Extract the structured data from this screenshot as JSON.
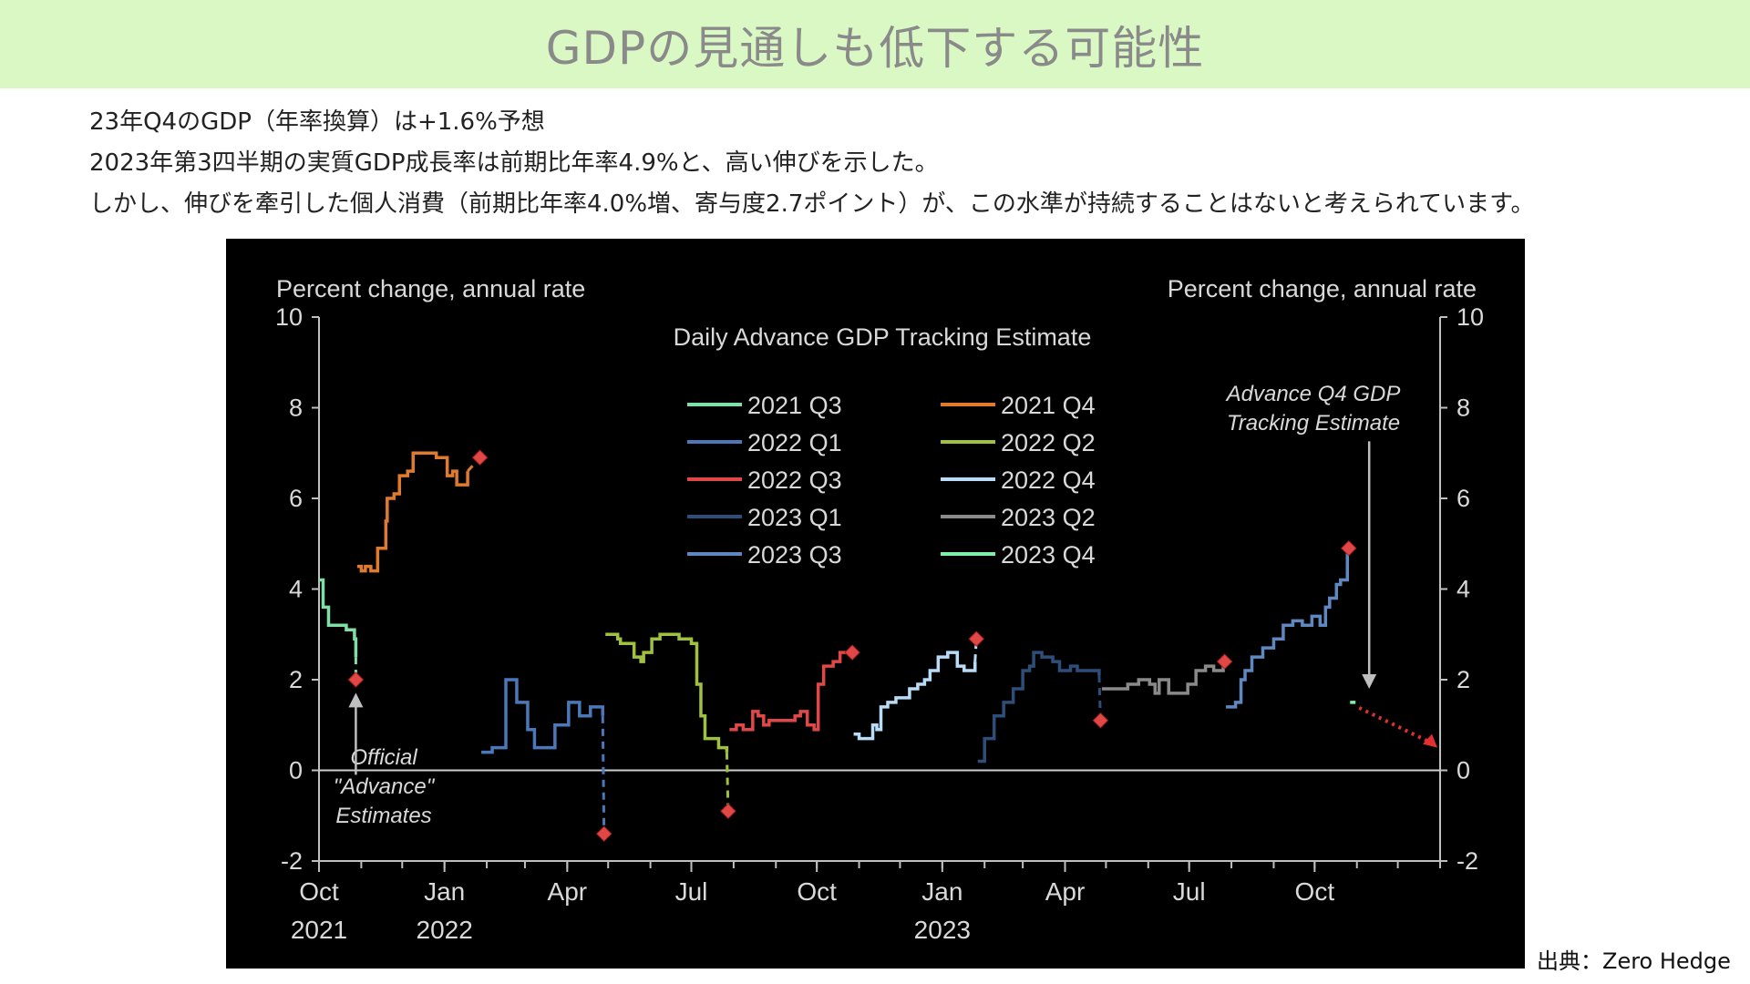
{
  "header": {
    "title": "GDPの見通しも低下する可能性"
  },
  "body": {
    "line1": "23年Q4のGDP（年率換算）は+1.6%予想",
    "line2": "2023年第3四半期の実質GDP成長率は前期比年率4.9%と、高い伸びを示した。",
    "line3": "しかし、伸びを牽引した個人消費（前期比年率4.0%増、寄与度2.7ポイント）が、この水準が持続することはないと考えられています。"
  },
  "source": "出典：Zero Hedge",
  "chart_data": {
    "type": "line",
    "title": "Daily Advance  GDP Tracking Estimate",
    "ylabel_left": "Percent change, annual rate",
    "ylabel_right": "Percent change, annual rate",
    "ylim": [
      -2,
      10
    ],
    "yticks": [
      -2,
      0,
      2,
      4,
      6,
      8,
      10
    ],
    "x_start": "2021-10-01",
    "x_end": "2024-01-01",
    "xticks": [
      {
        "date": "2021-10-01",
        "month": "Oct",
        "year": "2021"
      },
      {
        "date": "2022-01-01",
        "month": "Jan",
        "year": "2022"
      },
      {
        "date": "2022-04-01",
        "month": "Apr",
        "year": ""
      },
      {
        "date": "2022-07-01",
        "month": "Jul",
        "year": ""
      },
      {
        "date": "2022-10-01",
        "month": "Oct",
        "year": ""
      },
      {
        "date": "2023-01-01",
        "month": "Jan",
        "year": "2023"
      },
      {
        "date": "2023-04-01",
        "month": "Apr",
        "year": ""
      },
      {
        "date": "2023-07-01",
        "month": "Jul",
        "year": ""
      },
      {
        "date": "2023-10-01",
        "month": "Oct",
        "year": ""
      }
    ],
    "grid": false,
    "legend_position": "top-center",
    "series": [
      {
        "name": "2021 Q3",
        "color": "#7ee0a6",
        "points": [
          [
            "2021-10-01",
            4.2
          ],
          [
            "2021-10-04",
            3.6
          ],
          [
            "2021-10-07",
            3.6
          ],
          [
            "2021-10-08",
            3.2
          ],
          [
            "2021-10-20",
            3.2
          ],
          [
            "2021-10-21",
            3.1
          ],
          [
            "2021-10-26",
            3.1
          ],
          [
            "2021-10-27",
            2.9
          ],
          [
            "2021-10-28",
            2.5
          ]
        ],
        "advance": [
          "2021-10-28",
          2.0
        ]
      },
      {
        "name": "2021 Q4",
        "color": "#e07b2e",
        "points": [
          [
            "2021-10-29",
            4.5
          ],
          [
            "2021-11-01",
            4.4
          ],
          [
            "2021-11-04",
            4.5
          ],
          [
            "2021-11-08",
            4.4
          ],
          [
            "2021-11-12",
            4.4
          ],
          [
            "2021-11-13",
            4.9
          ],
          [
            "2021-11-17",
            4.9
          ],
          [
            "2021-11-19",
            5.5
          ],
          [
            "2021-11-20",
            6.0
          ],
          [
            "2021-11-25",
            6.1
          ],
          [
            "2021-11-29",
            6.5
          ],
          [
            "2021-12-05",
            6.6
          ],
          [
            "2021-12-09",
            7.0
          ],
          [
            "2021-12-22",
            7.0
          ],
          [
            "2021-12-26",
            6.9
          ],
          [
            "2022-01-01",
            6.9
          ],
          [
            "2022-01-03",
            6.5
          ],
          [
            "2022-01-07",
            6.6
          ],
          [
            "2022-01-10",
            6.3
          ],
          [
            "2022-01-14",
            6.3
          ],
          [
            "2022-01-18",
            6.6
          ]
        ],
        "advance": [
          "2022-01-27",
          6.9
        ]
      },
      {
        "name": "2022 Q1",
        "color": "#4a78b8",
        "points": [
          [
            "2022-01-28",
            0.4
          ],
          [
            "2022-02-05",
            0.5
          ],
          [
            "2022-02-13",
            0.5
          ],
          [
            "2022-02-15",
            2.0
          ],
          [
            "2022-02-20",
            2.0
          ],
          [
            "2022-02-23",
            1.5
          ],
          [
            "2022-02-28",
            1.5
          ],
          [
            "2022-03-03",
            0.9
          ],
          [
            "2022-03-08",
            0.5
          ],
          [
            "2022-03-21",
            0.5
          ],
          [
            "2022-03-23",
            1.0
          ],
          [
            "2022-03-30",
            1.0
          ],
          [
            "2022-04-02",
            1.5
          ],
          [
            "2022-04-07",
            1.5
          ],
          [
            "2022-04-10",
            1.2
          ],
          [
            "2022-04-18",
            1.4
          ],
          [
            "2022-04-27",
            1.2
          ]
        ],
        "advance": [
          "2022-04-28",
          -1.4
        ]
      },
      {
        "name": "2022 Q2",
        "color": "#a0c040",
        "points": [
          [
            "2022-04-29",
            3.0
          ],
          [
            "2022-05-04",
            3.0
          ],
          [
            "2022-05-08",
            2.9
          ],
          [
            "2022-05-10",
            2.8
          ],
          [
            "2022-05-17",
            2.8
          ],
          [
            "2022-05-20",
            2.5
          ],
          [
            "2022-05-25",
            2.4
          ],
          [
            "2022-05-27",
            2.6
          ],
          [
            "2022-06-02",
            2.9
          ],
          [
            "2022-06-08",
            3.0
          ],
          [
            "2022-06-20",
            3.0
          ],
          [
            "2022-06-22",
            2.9
          ],
          [
            "2022-06-30",
            2.9
          ],
          [
            "2022-07-01",
            2.8
          ],
          [
            "2022-07-05",
            1.9
          ],
          [
            "2022-07-08",
            1.2
          ],
          [
            "2022-07-11",
            0.7
          ],
          [
            "2022-07-15",
            0.7
          ],
          [
            "2022-07-21",
            0.5
          ],
          [
            "2022-07-27",
            0.4
          ]
        ],
        "advance": [
          "2022-07-28",
          -0.9
        ]
      },
      {
        "name": "2022 Q3",
        "color": "#e04848",
        "points": [
          [
            "2022-07-29",
            0.9
          ],
          [
            "2022-08-03",
            1.0
          ],
          [
            "2022-08-08",
            0.9
          ],
          [
            "2022-08-13",
            0.9
          ],
          [
            "2022-08-15",
            1.3
          ],
          [
            "2022-08-19",
            1.2
          ],
          [
            "2022-08-23",
            1.0
          ],
          [
            "2022-08-27",
            1.1
          ],
          [
            "2022-09-03",
            1.1
          ],
          [
            "2022-09-08",
            1.1
          ],
          [
            "2022-09-14",
            1.1
          ],
          [
            "2022-09-15",
            1.2
          ],
          [
            "2022-09-19",
            1.3
          ],
          [
            "2022-09-24",
            1.0
          ],
          [
            "2022-09-29",
            0.9
          ],
          [
            "2022-10-02",
            1.9
          ],
          [
            "2022-10-06",
            2.3
          ],
          [
            "2022-10-13",
            2.4
          ],
          [
            "2022-10-18",
            2.6
          ],
          [
            "2022-10-26",
            2.6
          ]
        ],
        "advance": [
          "2022-10-27",
          2.6
        ]
      },
      {
        "name": "2022 Q4",
        "color": "#b8dcf8",
        "points": [
          [
            "2022-10-28",
            0.8
          ],
          [
            "2022-10-31",
            0.8
          ],
          [
            "2022-11-01",
            0.7
          ],
          [
            "2022-11-08",
            0.7
          ],
          [
            "2022-11-11",
            1.0
          ],
          [
            "2022-11-14",
            0.9
          ],
          [
            "2022-11-17",
            1.4
          ],
          [
            "2022-11-22",
            1.5
          ],
          [
            "2022-11-28",
            1.6
          ],
          [
            "2022-12-05",
            1.6
          ],
          [
            "2022-12-08",
            1.8
          ],
          [
            "2022-12-14",
            1.9
          ],
          [
            "2022-12-19",
            2.0
          ],
          [
            "2022-12-23",
            2.2
          ],
          [
            "2022-12-29",
            2.5
          ],
          [
            "2023-01-05",
            2.6
          ],
          [
            "2023-01-12",
            2.3
          ],
          [
            "2023-01-17",
            2.2
          ],
          [
            "2023-01-25",
            2.4
          ]
        ],
        "advance": [
          "2023-01-26",
          2.9
        ]
      },
      {
        "name": "2023 Q1",
        "color": "#2e4e7a",
        "points": [
          [
            "2023-01-27",
            0.2
          ],
          [
            "2023-02-01",
            0.7
          ],
          [
            "2023-02-03",
            0.7
          ],
          [
            "2023-02-08",
            1.2
          ],
          [
            "2023-02-15",
            1.5
          ],
          [
            "2023-02-22",
            1.8
          ],
          [
            "2023-03-01",
            2.2
          ],
          [
            "2023-03-06",
            2.3
          ],
          [
            "2023-03-09",
            2.6
          ],
          [
            "2023-03-15",
            2.5
          ],
          [
            "2023-03-23",
            2.4
          ],
          [
            "2023-03-28",
            2.2
          ],
          [
            "2023-04-05",
            2.3
          ],
          [
            "2023-04-10",
            2.2
          ],
          [
            "2023-04-17",
            2.2
          ],
          [
            "2023-04-26",
            2.1
          ]
        ],
        "advance": [
          "2023-04-27",
          1.1
        ]
      },
      {
        "name": "2023 Q2",
        "color": "#8a8a8a",
        "points": [
          [
            "2023-04-28",
            1.8
          ],
          [
            "2023-05-05",
            1.8
          ],
          [
            "2023-05-12",
            1.8
          ],
          [
            "2023-05-17",
            1.9
          ],
          [
            "2023-05-25",
            2.0
          ],
          [
            "2023-06-02",
            1.9
          ],
          [
            "2023-06-06",
            1.7
          ],
          [
            "2023-06-09",
            2.0
          ],
          [
            "2023-06-16",
            1.7
          ],
          [
            "2023-06-23",
            1.7
          ],
          [
            "2023-06-30",
            1.9
          ],
          [
            "2023-07-06",
            2.2
          ],
          [
            "2023-07-13",
            2.3
          ],
          [
            "2023-07-19",
            2.2
          ],
          [
            "2023-07-26",
            2.4
          ]
        ],
        "advance": [
          "2023-07-27",
          2.4
        ]
      },
      {
        "name": "2023 Q3",
        "color": "#6088c0",
        "points": [
          [
            "2023-07-28",
            1.4
          ],
          [
            "2023-08-04",
            1.5
          ],
          [
            "2023-08-08",
            2.0
          ],
          [
            "2023-08-11",
            2.2
          ],
          [
            "2023-08-16",
            2.5
          ],
          [
            "2023-08-24",
            2.7
          ],
          [
            "2023-09-01",
            2.9
          ],
          [
            "2023-09-08",
            3.2
          ],
          [
            "2023-09-15",
            3.3
          ],
          [
            "2023-09-22",
            3.2
          ],
          [
            "2023-09-29",
            3.4
          ],
          [
            "2023-10-05",
            3.2
          ],
          [
            "2023-10-09",
            3.6
          ],
          [
            "2023-10-12",
            3.8
          ],
          [
            "2023-10-17",
            4.1
          ],
          [
            "2023-10-20",
            4.2
          ],
          [
            "2023-10-25",
            4.8
          ]
        ],
        "advance": [
          "2023-10-26",
          4.9
        ]
      },
      {
        "name": "2023 Q4",
        "color": "#7ef0a8",
        "points": [
          [
            "2023-10-27",
            1.5
          ],
          [
            "2023-10-31",
            1.5
          ]
        ]
      }
    ],
    "annotations": {
      "official": [
        "Official",
        "\"Advance\"",
        "Estimates"
      ],
      "tracking": [
        "Advance  Q4 GDP",
        "Tracking Estimate"
      ]
    }
  }
}
